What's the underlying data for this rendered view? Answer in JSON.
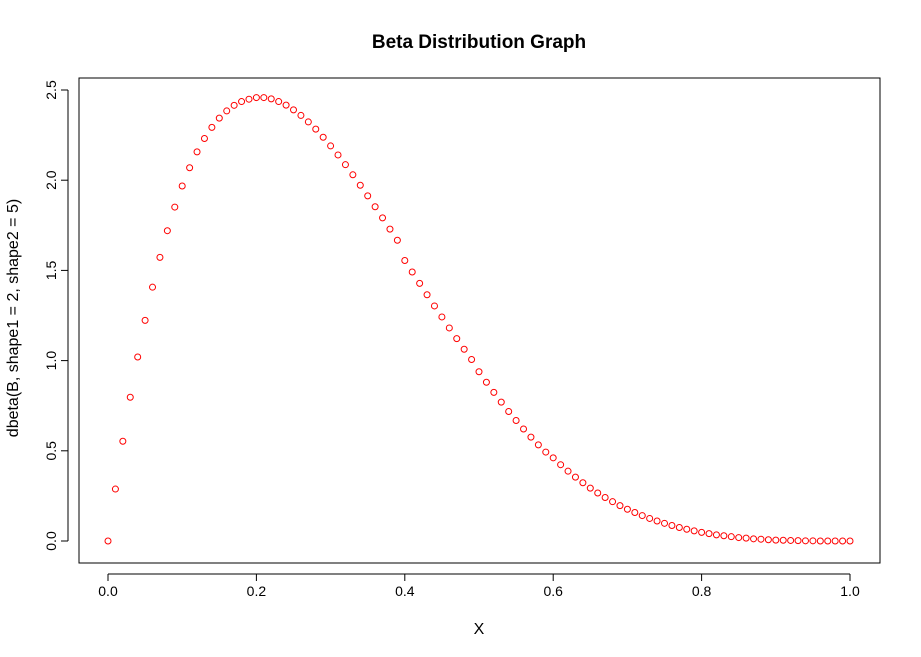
{
  "chart_data": {
    "type": "scatter",
    "title": "Beta Distribution Graph",
    "xlabel": "X",
    "ylabel": "dbeta(B, shape1 = 2, shape2 = 5)",
    "xlim": [
      0,
      1
    ],
    "ylim": [
      0,
      2.5
    ],
    "x_ticks": [
      0.0,
      0.2,
      0.4,
      0.6,
      0.8,
      1.0
    ],
    "x_tick_labels": [
      "0.0",
      "0.2",
      "0.4",
      "0.6",
      "0.8",
      "1.0"
    ],
    "y_ticks": [
      0.0,
      0.5,
      1.0,
      1.5,
      2.0,
      2.5
    ],
    "y_tick_labels": [
      "0.0",
      "0.5",
      "1.0",
      "1.5",
      "2.0",
      "2.5"
    ],
    "grid": false,
    "point_color": "#ff0000",
    "point_shape": "open-circle",
    "x": [
      0.0,
      0.01,
      0.02,
      0.03,
      0.04,
      0.05,
      0.06,
      0.07,
      0.08,
      0.09,
      0.1,
      0.11,
      0.12,
      0.13,
      0.14,
      0.15,
      0.16,
      0.17,
      0.18,
      0.19,
      0.2,
      0.21,
      0.22,
      0.23,
      0.24,
      0.25,
      0.26,
      0.27,
      0.28,
      0.29,
      0.3,
      0.31,
      0.32,
      0.33,
      0.34,
      0.35,
      0.36,
      0.37,
      0.38,
      0.39,
      0.4,
      0.41,
      0.42,
      0.43,
      0.44,
      0.45,
      0.46,
      0.47,
      0.48,
      0.49,
      0.5,
      0.51,
      0.52,
      0.53,
      0.54,
      0.55,
      0.56,
      0.57,
      0.58,
      0.59,
      0.6,
      0.61,
      0.62,
      0.63,
      0.64,
      0.65,
      0.66,
      0.67,
      0.68,
      0.69,
      0.7,
      0.71,
      0.72,
      0.73,
      0.74,
      0.75,
      0.76,
      0.77,
      0.78,
      0.79,
      0.8,
      0.81,
      0.82,
      0.83,
      0.84,
      0.85,
      0.86,
      0.87,
      0.88,
      0.89,
      0.9,
      0.91,
      0.92,
      0.93,
      0.94,
      0.95,
      0.96,
      0.97,
      0.98,
      0.99,
      1.0
    ],
    "y": [
      0.0,
      0.288,
      0.553,
      0.797,
      1.02,
      1.223,
      1.407,
      1.572,
      1.72,
      1.851,
      1.968,
      2.069,
      2.157,
      2.231,
      2.293,
      2.344,
      2.384,
      2.415,
      2.436,
      2.449,
      2.458,
      2.458,
      2.451,
      2.436,
      2.416,
      2.39,
      2.359,
      2.323,
      2.283,
      2.238,
      2.19,
      2.14,
      2.086,
      2.03,
      1.972,
      1.913,
      1.853,
      1.791,
      1.729,
      1.667,
      1.555,
      1.491,
      1.428,
      1.365,
      1.303,
      1.242,
      1.181,
      1.122,
      1.063,
      1.006,
      0.938,
      0.88,
      0.824,
      0.77,
      0.718,
      0.668,
      0.621,
      0.576,
      0.533,
      0.493,
      0.461,
      0.423,
      0.387,
      0.354,
      0.323,
      0.293,
      0.266,
      0.241,
      0.218,
      0.196,
      0.176,
      0.158,
      0.141,
      0.125,
      0.111,
      0.098,
      0.086,
      0.075,
      0.065,
      0.056,
      0.048,
      0.041,
      0.034,
      0.029,
      0.024,
      0.019,
      0.016,
      0.012,
      0.01,
      0.007,
      0.005,
      0.004,
      0.003,
      0.002,
      0.001,
      0.001,
      0.0,
      0.0,
      0.0,
      0.0,
      0.0
    ]
  }
}
